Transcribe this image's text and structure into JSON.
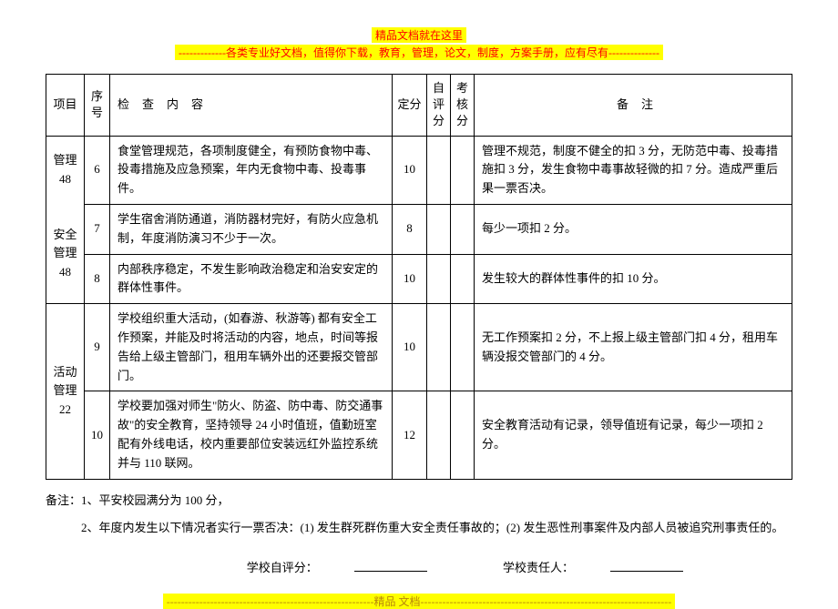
{
  "banner": {
    "line1": "精品文档就在这里",
    "line2": "-------------各类专业好文档，值得你下载，教育，管理，论文，制度，方案手册，应有尽有--------------",
    "bottom": "---------------------------------------------------------精品 文档---------------------------------------------------------------------"
  },
  "headers": {
    "project": "项目",
    "seq": "序号",
    "content": "检查内容",
    "score": "定分",
    "self": "自评分",
    "check": "考核分",
    "remark": "备注"
  },
  "rows": [
    {
      "project": "管理48",
      "seq": "6",
      "content": "食堂管理规范，各项制度健全，有预防食物中毒、投毒措施及应急预案，年内无食物中毒、投毒事件。",
      "score": "10",
      "self": "",
      "check": "",
      "remark": "管理不规范，制度不健全的扣 3 分，无防范中毒、投毒措施扣 3 分，发生食物中毒事故轻微的扣 7 分。造成严重后果一票否决。"
    },
    {
      "project": "安全管理48",
      "seq": "7",
      "content": "学生宿舍消防通道，消防器材完好，有防火应急机制，年度消防演习不少于一次。",
      "score": "8",
      "self": "",
      "check": "",
      "remark": "每少一项扣 2 分。"
    },
    {
      "project": "",
      "seq": "8",
      "content": "内部秩序稳定，不发生影响政治稳定和治安安定的群体性事件。",
      "score": "10",
      "self": "",
      "check": "",
      "remark": "发生较大的群体性事件的扣 10 分。"
    },
    {
      "project": "活动管理22",
      "seq": "9",
      "content": "学校组织重大活动，(如春游、秋游等) 都有安全工作预案，并能及时将活动的内容，地点，时间等报告给上级主管部门，租用车辆外出的还要报交管部门。",
      "score": "10",
      "self": "",
      "check": "",
      "remark": "无工作预案扣 2 分，不上报上级主管部门扣 4 分，租用车辆没报交管部门的 4 分。"
    },
    {
      "project": "",
      "seq": "10",
      "content": "学校要加强对师生\"防火、防盗、防中毒、防交通事故\"的安全教育，坚持领导 24 小时值班，值勤班室配有外线电话，校内重要部位安装远红外监控系统并与 110 联网。",
      "score": "12",
      "self": "",
      "check": "",
      "remark": "安全教育活动有记录，领导值班有记录，每少一项扣 2 分。"
    }
  ],
  "notes": {
    "line1": "备注：1、平安校园满分为 100 分，",
    "line2": "　　　2、年度内发生以下情况者实行一票否决：(1) 发生群死群伤重大安全责任事故的；(2) 发生恶性刑事案件及内部人员被追究刑事责任的。"
  },
  "signature": {
    "selfScore": "学校自评分：",
    "responsible": "学校责任人："
  }
}
